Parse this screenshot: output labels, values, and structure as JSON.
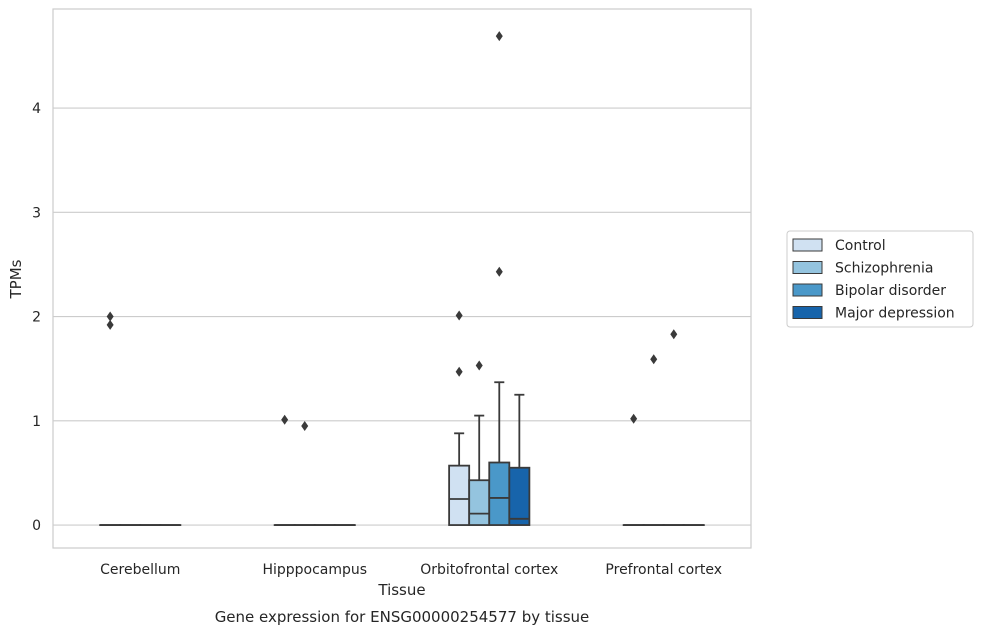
{
  "chart_data": {
    "type": "box",
    "title": "Gene expression for ENSG00000254577 by tissue",
    "xlabel": "Tissue",
    "ylabel": "TPMs",
    "ylim": [
      -0.22,
      4.95
    ],
    "yticks": [
      0,
      1,
      2,
      3,
      4
    ],
    "grid": "horizontal",
    "legend_position": "right",
    "categories": [
      "Cerebellum",
      "Hipppocampus",
      "Orbitofrontal cortex",
      "Prefrontal cortex"
    ],
    "series": [
      {
        "name": "Control",
        "color": "#d0e1f2",
        "boxes": [
          {
            "q1": 0,
            "median": 0,
            "q3": 0,
            "whisker_low": 0,
            "whisker_high": 0,
            "outliers": [
              1.92,
              2.0
            ]
          },
          {
            "q1": 0,
            "median": 0,
            "q3": 0,
            "whisker_low": 0,
            "whisker_high": 0,
            "outliers": [
              1.01
            ]
          },
          {
            "q1": 0,
            "median": 0.25,
            "q3": 0.57,
            "whisker_low": 0,
            "whisker_high": 0.88,
            "outliers": [
              1.47,
              2.01
            ]
          },
          {
            "q1": 0,
            "median": 0,
            "q3": 0,
            "whisker_low": 0,
            "whisker_high": 0,
            "outliers": [
              1.02
            ]
          }
        ]
      },
      {
        "name": "Schizophrenia",
        "color": "#94c4df",
        "boxes": [
          {
            "q1": 0,
            "median": 0,
            "q3": 0,
            "whisker_low": 0,
            "whisker_high": 0,
            "outliers": []
          },
          {
            "q1": 0,
            "median": 0,
            "q3": 0,
            "whisker_low": 0,
            "whisker_high": 0,
            "outliers": [
              0.95
            ]
          },
          {
            "q1": 0,
            "median": 0.11,
            "q3": 0.43,
            "whisker_low": 0,
            "whisker_high": 1.05,
            "outliers": [
              1.53
            ]
          },
          {
            "q1": 0,
            "median": 0,
            "q3": 0,
            "whisker_low": 0,
            "whisker_high": 0,
            "outliers": [
              1.59
            ]
          }
        ]
      },
      {
        "name": "Bipolar disorder",
        "color": "#4a98c9",
        "boxes": [
          {
            "q1": 0,
            "median": 0,
            "q3": 0,
            "whisker_low": 0,
            "whisker_high": 0,
            "outliers": []
          },
          {
            "q1": 0,
            "median": 0,
            "q3": 0,
            "whisker_low": 0,
            "whisker_high": 0,
            "outliers": []
          },
          {
            "q1": 0,
            "median": 0.26,
            "q3": 0.6,
            "whisker_low": 0,
            "whisker_high": 1.37,
            "outliers": [
              2.43,
              4.69
            ]
          },
          {
            "q1": 0,
            "median": 0,
            "q3": 0,
            "whisker_low": 0,
            "whisker_high": 0,
            "outliers": [
              1.83
            ]
          }
        ]
      },
      {
        "name": "Major depression",
        "color": "#1764ab",
        "boxes": [
          {
            "q1": 0,
            "median": 0,
            "q3": 0,
            "whisker_low": 0,
            "whisker_high": 0,
            "outliers": []
          },
          {
            "q1": 0,
            "median": 0,
            "q3": 0,
            "whisker_low": 0,
            "whisker_high": 0,
            "outliers": []
          },
          {
            "q1": 0,
            "median": 0.06,
            "q3": 0.55,
            "whisker_low": 0,
            "whisker_high": 1.25,
            "outliers": []
          },
          {
            "q1": 0,
            "median": 0,
            "q3": 0,
            "whisker_low": 0,
            "whisker_high": 0,
            "outliers": []
          }
        ]
      }
    ]
  }
}
